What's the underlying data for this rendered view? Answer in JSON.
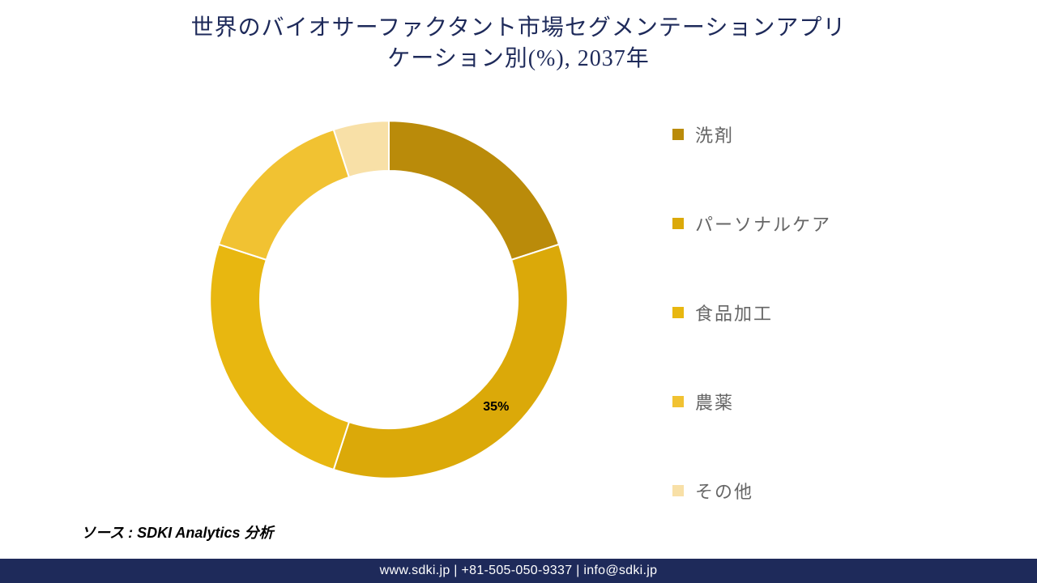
{
  "title": {
    "line1": "世界のバイオサーファクタント市場セグメンテーションアプリ",
    "line2": "ケーション別(%), 2037年",
    "color": "#1e2a5a",
    "fontsize": 28,
    "font_family": "serif"
  },
  "chart": {
    "type": "donut",
    "inner_radius_ratio": 0.72,
    "start_angle_deg": 0,
    "background_color": "#ffffff",
    "segments": [
      {
        "label": "洗剤",
        "value": 20,
        "color": "#ba8b0a"
      },
      {
        "label": "パーソナルケア",
        "value": 35,
        "color": "#dba909",
        "data_label": "35%",
        "data_label_fontsize": 16,
        "data_label_color": "#000000"
      },
      {
        "label": "食品加工",
        "value": 25,
        "color": "#e8b710"
      },
      {
        "label": "農薬",
        "value": 15,
        "color": "#f1c232"
      },
      {
        "label": "その他",
        "value": 5,
        "color": "#f8e0a7"
      }
    ],
    "separator_color": "#ffffff",
    "separator_width": 2
  },
  "legend": {
    "items": [
      {
        "swatch": "#ba8b0a",
        "label": "洗剤"
      },
      {
        "swatch": "#dba909",
        "label": "パーソナルケア"
      },
      {
        "swatch": "#e8b710",
        "label": "食品加工"
      },
      {
        "swatch": "#f1c232",
        "label": "農薬"
      },
      {
        "swatch": "#f8e0a7",
        "label": "その他"
      }
    ],
    "fontsize": 22,
    "label_color": "#666666",
    "item_spacing": 78,
    "font_family": "serif"
  },
  "source": {
    "text": "ソース : SDKI Analytics 分析",
    "fontsize": 18
  },
  "footer": {
    "text": "www.sdki.jp | +81-505-050-9337 | info@sdki.jp",
    "background": "#1e2a5a",
    "color": "#ffffff",
    "fontsize": 16
  }
}
